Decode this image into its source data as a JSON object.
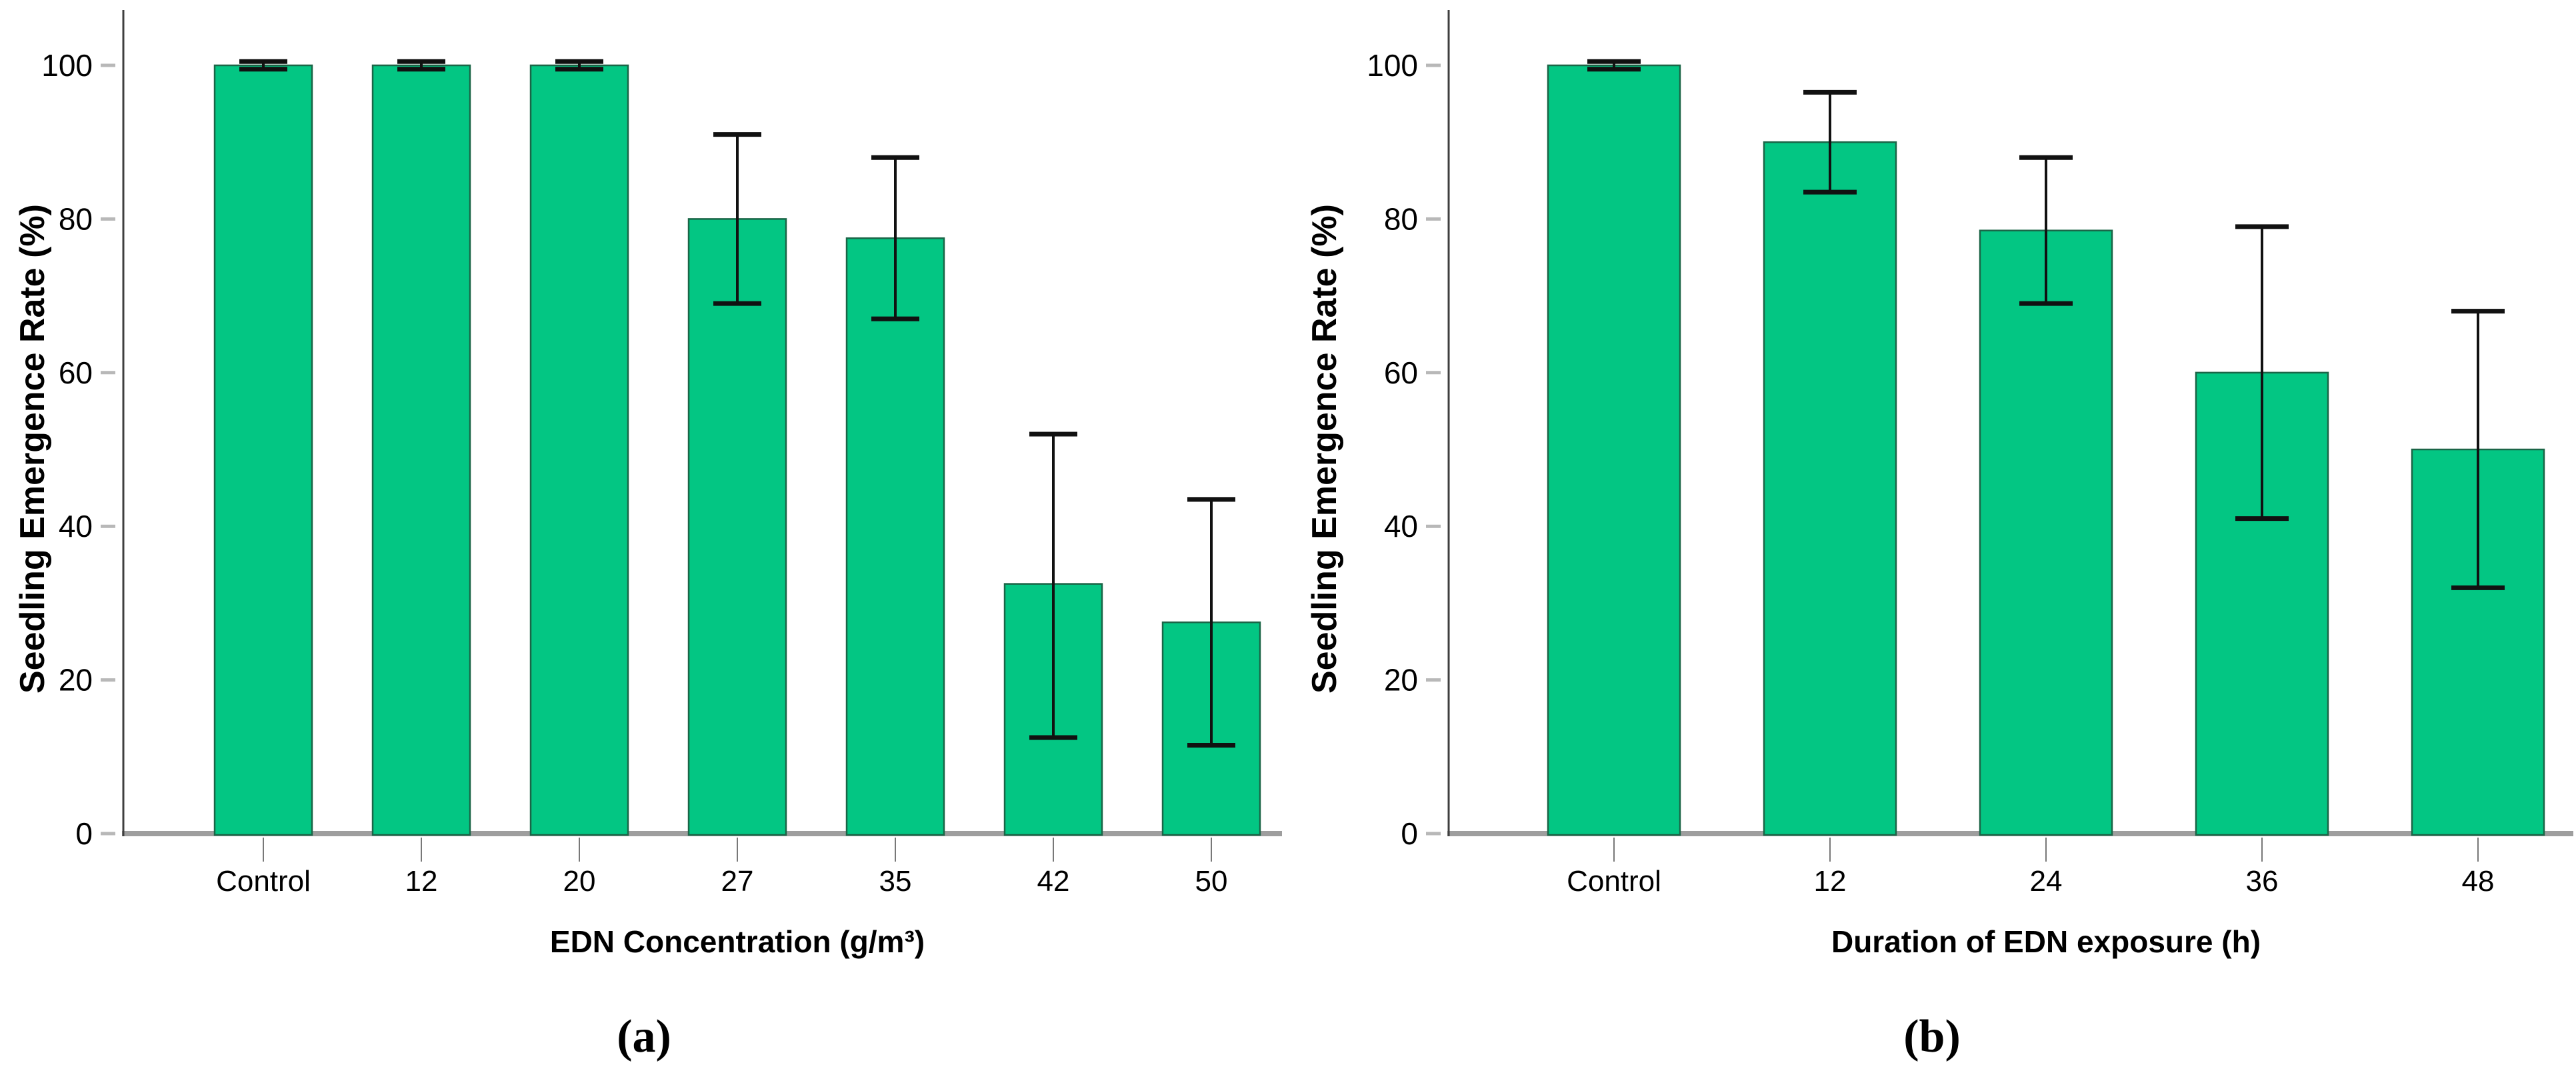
{
  "figure": {
    "background": "#ffffff"
  },
  "chart_data": [
    {
      "type": "bar",
      "panel": "a",
      "caption": "(a)",
      "categories": [
        "Control",
        "12",
        "20",
        "27",
        "35",
        "42",
        "50"
      ],
      "values": [
        100,
        100,
        100,
        80,
        77.5,
        32.5,
        27.5
      ],
      "error_plus": [
        0.5,
        0.5,
        0.5,
        11,
        10.5,
        19.5,
        16
      ],
      "error_minus": [
        0.5,
        0.5,
        0.5,
        11,
        10.5,
        20,
        16
      ],
      "xlabel": "EDN Concentration (g/m³)",
      "ylabel": "Seedling Emergence Rate (%)",
      "yticks": [
        0,
        20,
        40,
        60,
        80,
        100
      ],
      "ylim": [
        0,
        100
      ],
      "grid": false,
      "bar_color": "#03c683",
      "bar_edge_color": "#1b6547",
      "error_color": "#111111",
      "axis_color": "#3f3f3f",
      "baseline_color": "#9e9e9e",
      "ytick_mark_color": "#b8b8b8",
      "xtick_mark_color": "#787878"
    },
    {
      "type": "bar",
      "panel": "b",
      "caption": "(b)",
      "categories": [
        "Control",
        "12",
        "24",
        "36",
        "48"
      ],
      "values": [
        100,
        90,
        78.5,
        60,
        50
      ],
      "error_plus": [
        0.5,
        6.5,
        9.5,
        19,
        18
      ],
      "error_minus": [
        0.5,
        6.5,
        9.5,
        19,
        18
      ],
      "xlabel": "Duration of EDN exposure (h)",
      "ylabel": "Seedling Emergence Rate (%)",
      "yticks": [
        0,
        20,
        40,
        60,
        80,
        100
      ],
      "ylim": [
        0,
        100
      ],
      "grid": false,
      "bar_color": "#03c683",
      "bar_edge_color": "#1b6547",
      "error_color": "#111111",
      "axis_color": "#3f3f3f",
      "baseline_color": "#9e9e9e",
      "ytick_mark_color": "#b8b8b8",
      "xtick_mark_color": "#787878"
    }
  ]
}
